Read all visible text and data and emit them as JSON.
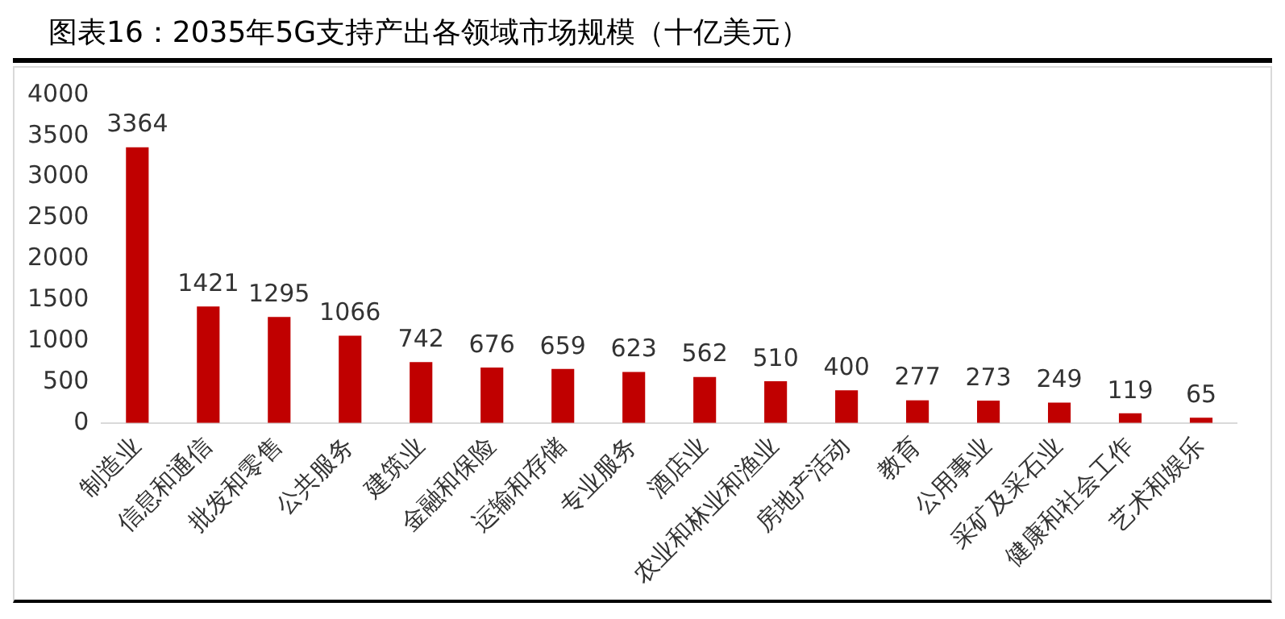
{
  "chart_data": {
    "type": "bar",
    "title": "图表16：2035年5G支持产出各领域市场规模（十亿美元）",
    "categories": [
      "制造业",
      "信息和通信",
      "批发和零售",
      "公共服务",
      "建筑业",
      "金融和保险",
      "运输和存储",
      "专业服务",
      "酒店业",
      "农业和林业和渔业",
      "房地产活动",
      "教育",
      "公用事业",
      "采矿及采石业",
      "健康和社会工作",
      "艺术和娱乐"
    ],
    "values": [
      3364,
      1421,
      1295,
      1066,
      742,
      676,
      659,
      623,
      562,
      510,
      400,
      277,
      273,
      249,
      119,
      65
    ],
    "color": "#c00000",
    "ylim": [
      0,
      4000
    ],
    "yticks": [
      0,
      500,
      1000,
      1500,
      2000,
      2500,
      3000,
      3500,
      4000
    ],
    "grid": false,
    "data_labels": true
  }
}
